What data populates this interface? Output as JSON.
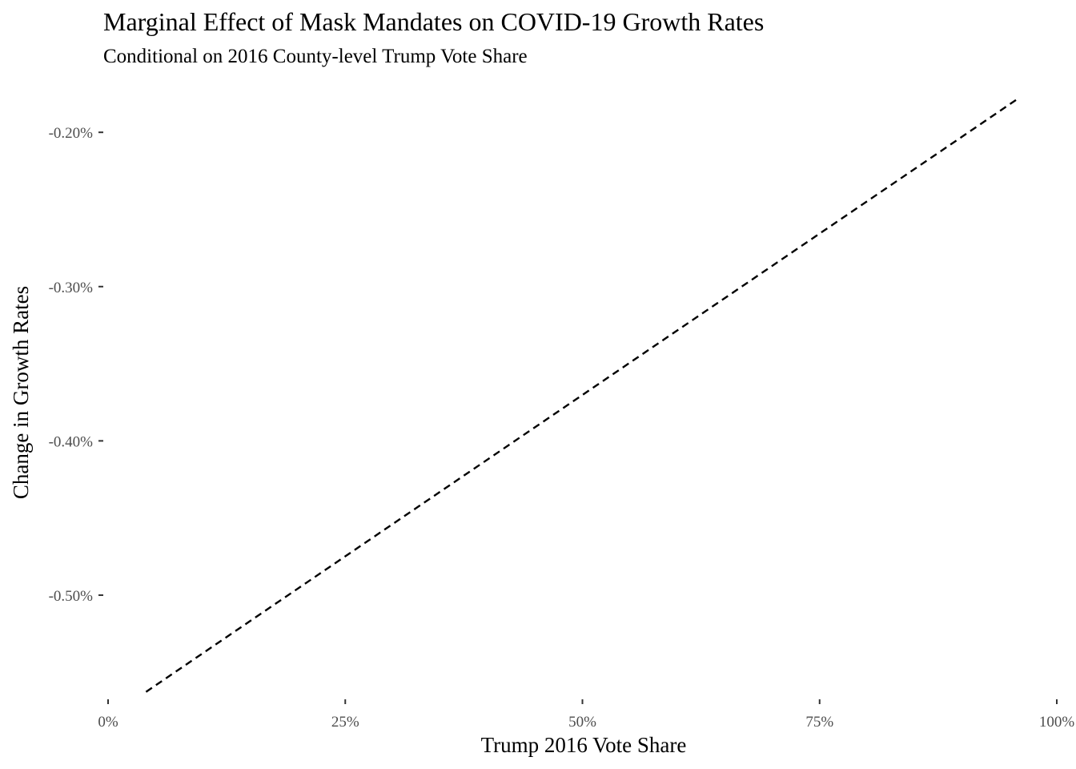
{
  "chart_data": {
    "type": "line",
    "title": "Marginal Effect of Mask Mandates on COVID-19 Growth Rates",
    "subtitle": "Conditional on 2016 County-level Trump Vote Share",
    "xlabel": "Trump 2016 Vote Share",
    "ylabel": "Change in Growth Rates",
    "xlim": [
      0,
      1
    ],
    "ylim": [
      -0.5644,
      -0.1755
    ],
    "x_ticks": [
      {
        "value": 0,
        "label": "0%"
      },
      {
        "value": 0.25,
        "label": "25%"
      },
      {
        "value": 0.5,
        "label": "50%"
      },
      {
        "value": 0.75,
        "label": "75%"
      },
      {
        "value": 1,
        "label": "100%"
      }
    ],
    "y_ticks": [
      {
        "value": -0.2,
        "label": "-0.20%"
      },
      {
        "value": -0.3,
        "label": "-0.30%"
      },
      {
        "value": -0.4,
        "label": "-0.40%"
      },
      {
        "value": -0.5,
        "label": "-0.50%"
      }
    ],
    "grid": false,
    "legend": "none",
    "series": [
      {
        "line_style": "dashed",
        "color": "#000000",
        "x": [
          0.04,
          0.96
        ],
        "y": [
          -0.5627,
          -0.1778
        ]
      }
    ]
  }
}
